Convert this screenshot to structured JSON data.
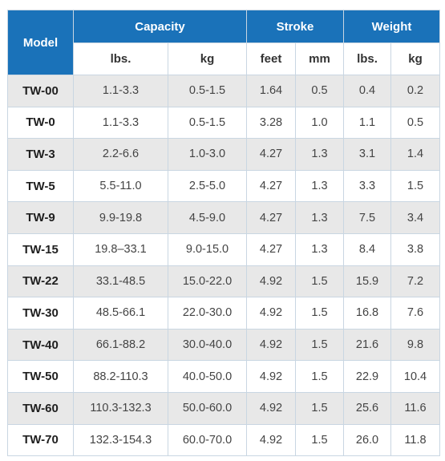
{
  "headers": {
    "model": "Model",
    "capacity": "Capacity",
    "stroke": "Stroke",
    "weight": "Weight",
    "capacity_lbs": "lbs.",
    "capacity_kg": "kg",
    "stroke_feet": "feet",
    "stroke_mm": "mm",
    "weight_lbs": "lbs.",
    "weight_kg": "kg"
  },
  "rows": [
    [
      "TW-00",
      "1.1-3.3",
      "0.5-1.5",
      "1.64",
      "0.5",
      "0.4",
      "0.2"
    ],
    [
      "TW-0",
      "1.1-3.3",
      "0.5-1.5",
      "3.28",
      "1.0",
      "1.1",
      "0.5"
    ],
    [
      "TW-3",
      "2.2-6.6",
      "1.0-3.0",
      "4.27",
      "1.3",
      "3.1",
      "1.4"
    ],
    [
      "TW-5",
      "5.5-11.0",
      "2.5-5.0",
      "4.27",
      "1.3",
      "3.3",
      "1.5"
    ],
    [
      "TW-9",
      "9.9-19.8",
      "4.5-9.0",
      "4.27",
      "1.3",
      "7.5",
      "3.4"
    ],
    [
      "TW-15",
      "19.8–33.1",
      "9.0-15.0",
      "4.27",
      "1.3",
      "8.4",
      "3.8"
    ],
    [
      "TW-22",
      "33.1-48.5",
      "15.0-22.0",
      "4.92",
      "1.5",
      "15.9",
      "7.2"
    ],
    [
      "TW-30",
      "48.5-66.1",
      "22.0-30.0",
      "4.92",
      "1.5",
      "16.8",
      "7.6"
    ],
    [
      "TW-40",
      "66.1-88.2",
      "30.0-40.0",
      "4.92",
      "1.5",
      "21.6",
      "9.8"
    ],
    [
      "TW-50",
      "88.2-110.3",
      "40.0-50.0",
      "4.92",
      "1.5",
      "22.9",
      "10.4"
    ],
    [
      "TW-60",
      "110.3-132.3",
      "50.0-60.0",
      "4.92",
      "1.5",
      "25.6",
      "11.6"
    ],
    [
      "TW-70",
      "132.3-154.3",
      "60.0-70.0",
      "4.92",
      "1.5",
      "26.0",
      "11.8"
    ]
  ],
  "colors": {
    "header_bg": "#1a72b9",
    "header_text": "#ffffff",
    "row_alt_bg": "#e8e8e8",
    "border": "#c9d6e2"
  }
}
